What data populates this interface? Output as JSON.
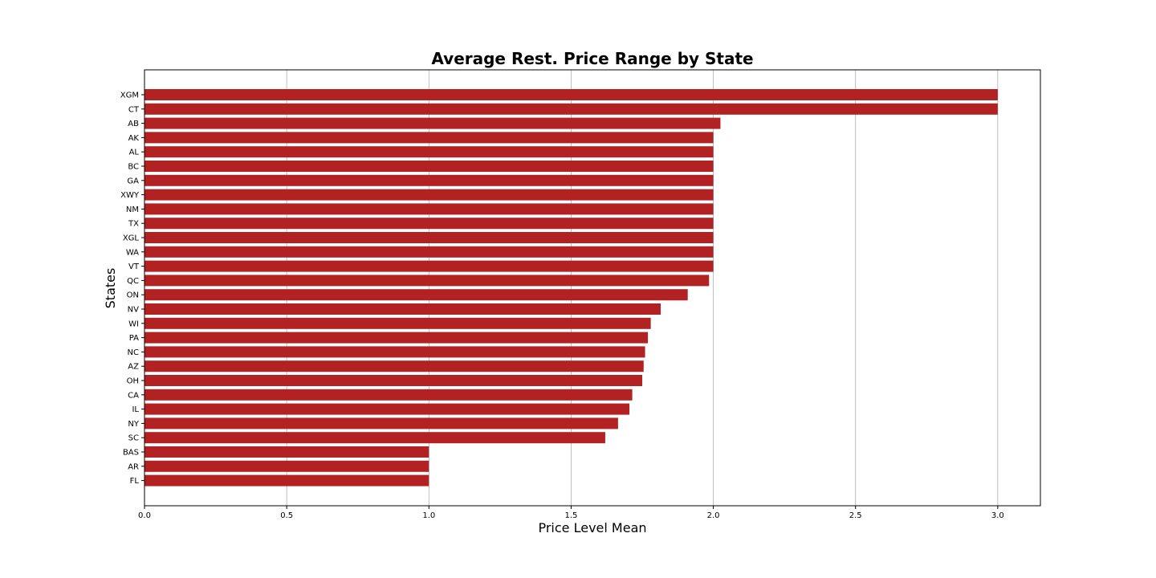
{
  "chart_data": {
    "type": "bar",
    "orientation": "horizontal",
    "title": "Average Rest. Price Range by State",
    "xlabel": "Price Level Mean",
    "ylabel": "States",
    "xlim": [
      0,
      3.15
    ],
    "x_ticks": [
      "0.0",
      "0.5",
      "1.0",
      "1.5",
      "2.0",
      "2.5",
      "3.0"
    ],
    "x_tick_values": [
      0,
      0.5,
      1.0,
      1.5,
      2.0,
      2.5,
      3.0
    ],
    "grid": "vertical",
    "legend": "none",
    "bar_color": "#b22222",
    "categories": [
      "XGM",
      "CT",
      "AB",
      "AK",
      "AL",
      "BC",
      "GA",
      "XWY",
      "NM",
      "TX",
      "XGL",
      "WA",
      "VT",
      "QC",
      "ON",
      "NV",
      "WI",
      "PA",
      "NC",
      "AZ",
      "OH",
      "CA",
      "IL",
      "NY",
      "SC",
      "BAS",
      "AR",
      "FL"
    ],
    "values": [
      3.0,
      3.0,
      2.025,
      2.0,
      2.0,
      2.0,
      2.0,
      2.0,
      2.0,
      2.0,
      2.0,
      2.0,
      2.0,
      1.985,
      1.91,
      1.815,
      1.78,
      1.77,
      1.76,
      1.755,
      1.75,
      1.715,
      1.705,
      1.665,
      1.62,
      1.0,
      1.0,
      1.0
    ]
  }
}
